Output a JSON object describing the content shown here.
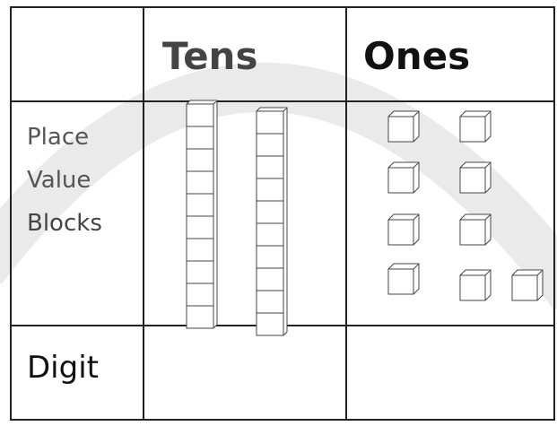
{
  "table": {
    "header": [
      "Tens",
      "Ones"
    ],
    "rows": [
      {
        "label": [
          "Place",
          "Value",
          "Blocks"
        ]
      },
      {
        "label": "Digit"
      }
    ]
  }
}
